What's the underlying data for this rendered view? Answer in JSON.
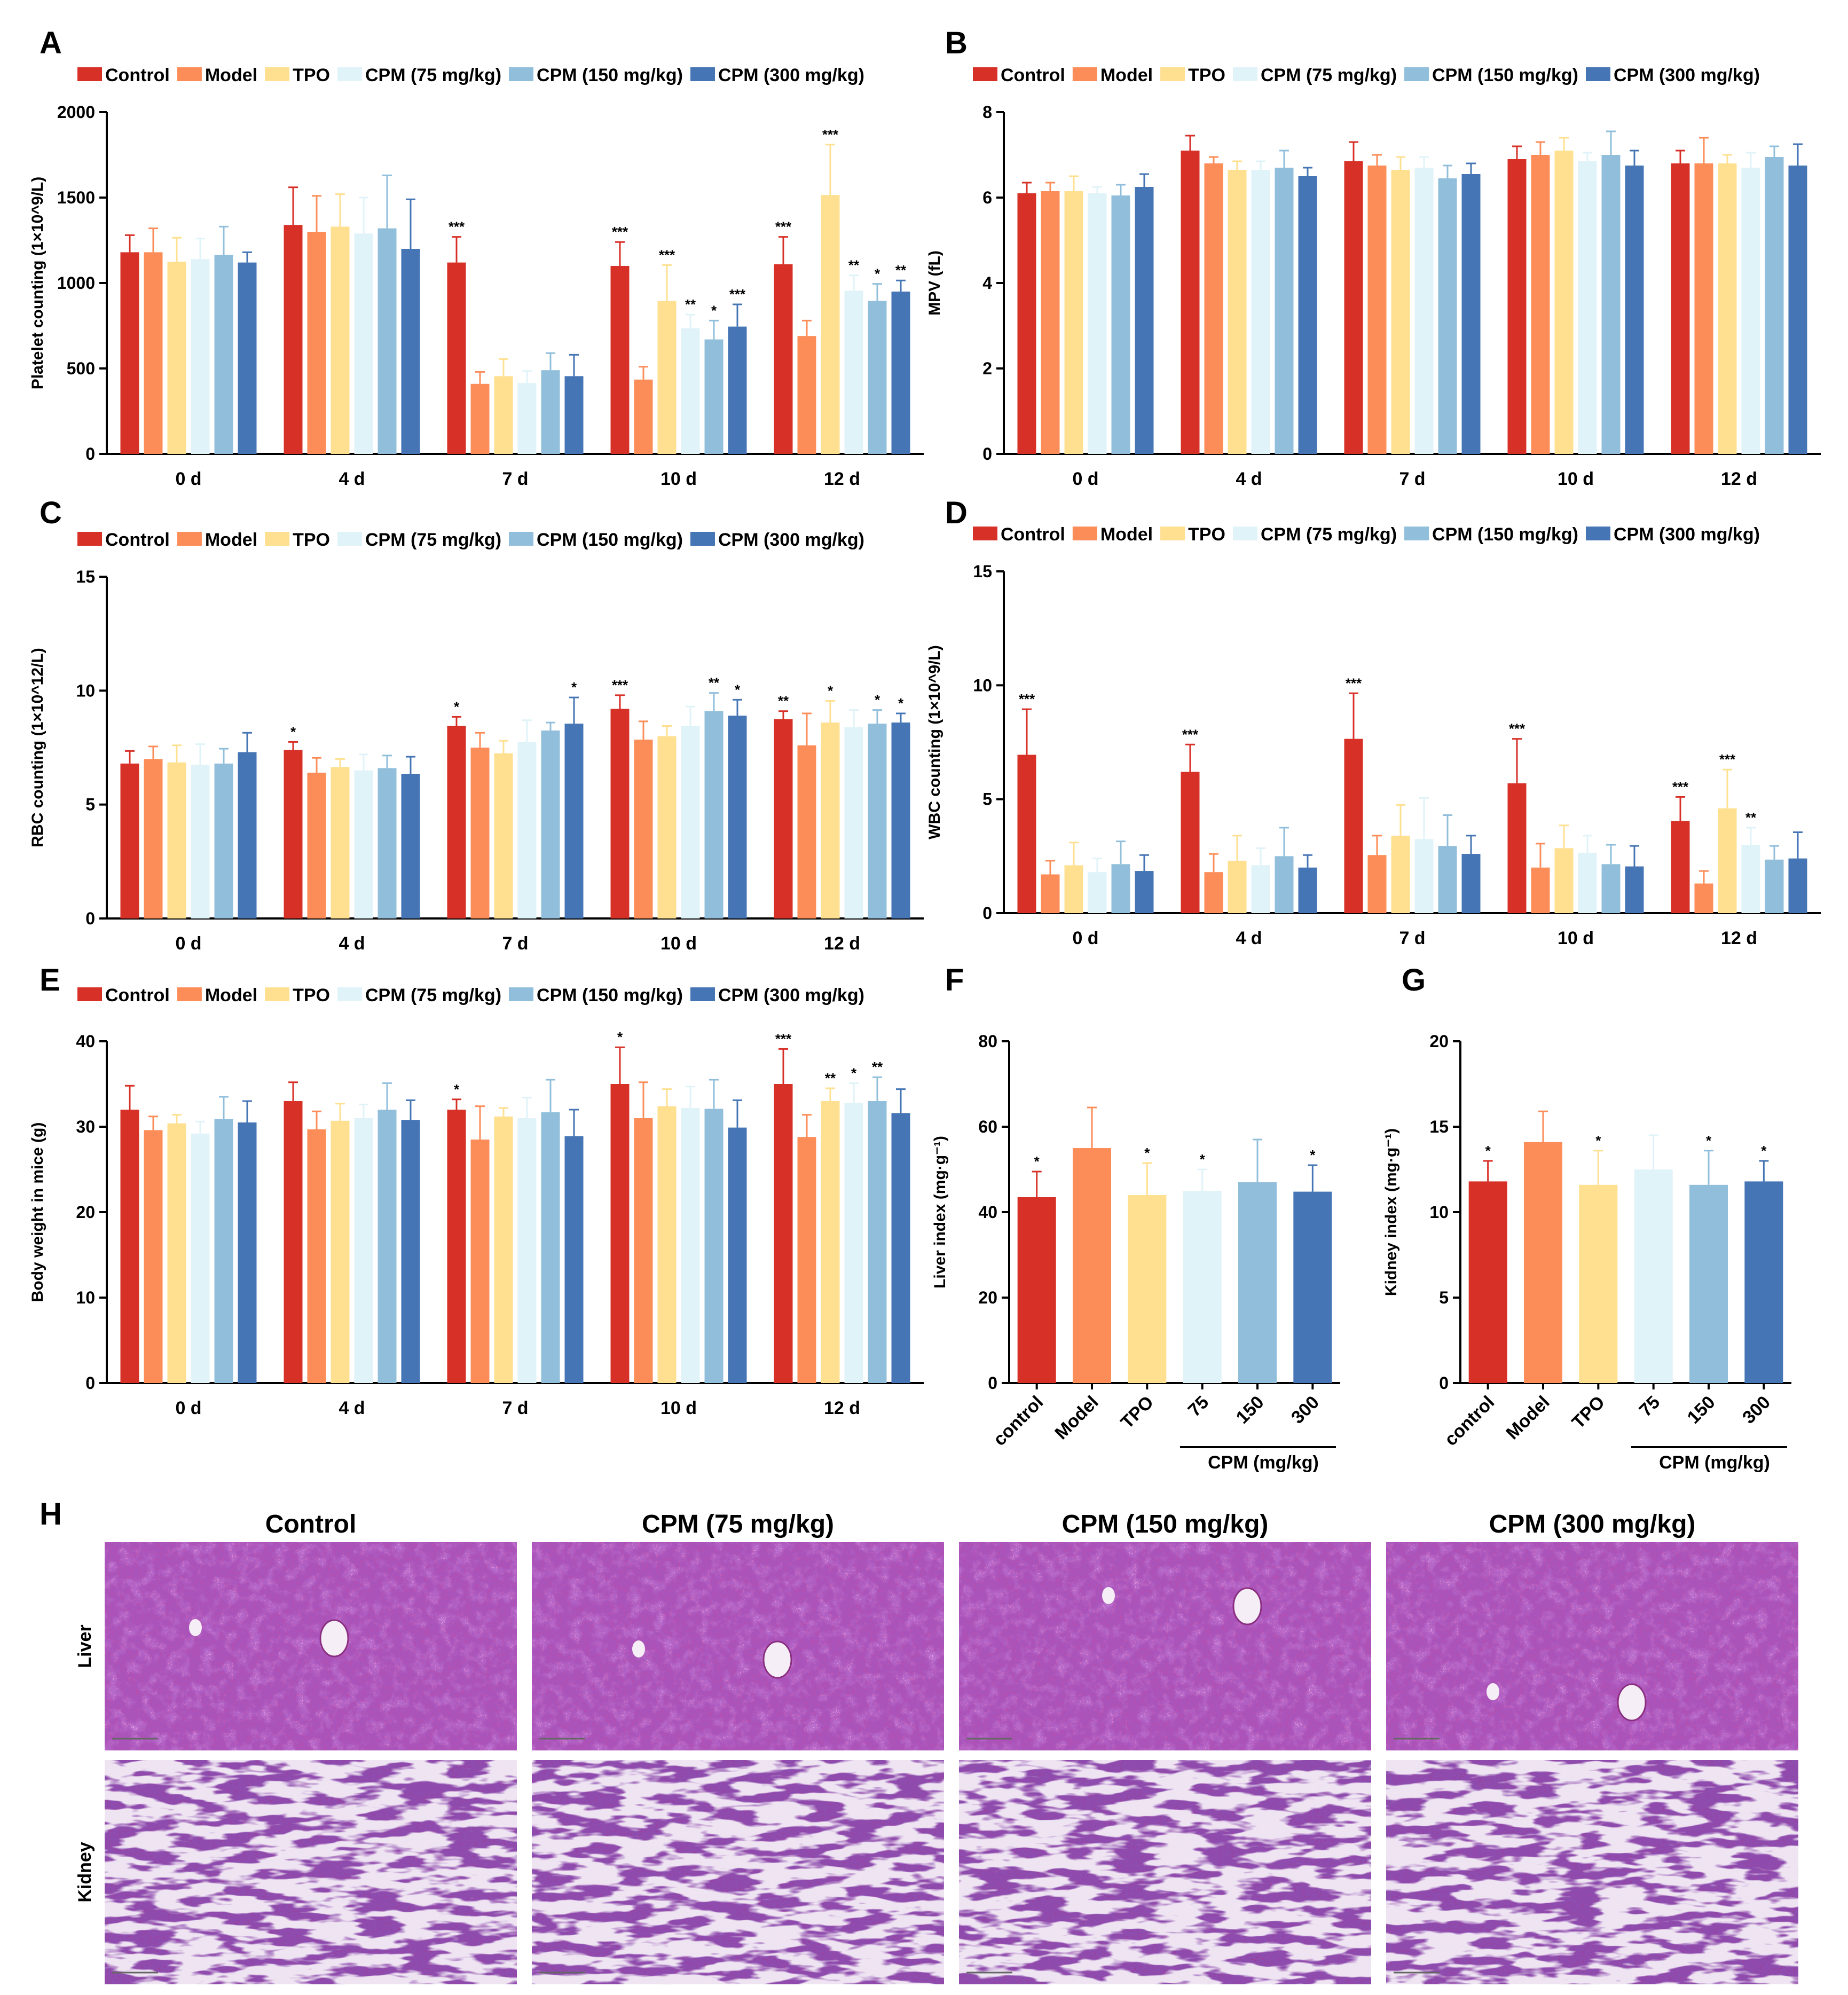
{
  "colors": {
    "Control": "#d73027",
    "Model": "#fc8d59",
    "TPO": "#fee090",
    "CPM (75 mg/kg)": "#e0f3f8",
    "CPM (150 mg/kg)": "#91bfdb",
    "CPM (300 mg/kg)": "#4575b4",
    "control": "#d73027",
    "75": "#e0f3f8",
    "150": "#91bfdb",
    "300": "#4575b4",
    "axis": "#000000",
    "liver_tissue": "#c04aa8",
    "kidney_tissue": "#a03d9a"
  },
  "chart_data": [
    {
      "panel": "A",
      "type": "bar",
      "ylabel": "Platelet counting (1×10^9/L)",
      "ylim": [
        0,
        2000
      ],
      "yticks": [
        "0",
        "500",
        "1000",
        "1500",
        "2000"
      ],
      "tick_values": [
        0,
        500,
        1000,
        1500,
        2000
      ],
      "categories": [
        "0 d",
        "4 d",
        "7 d",
        "10 d",
        "12 d"
      ],
      "series": [
        {
          "name": "Control",
          "values": [
            1180,
            1340,
            1120,
            1100,
            1110
          ],
          "errors": [
            100,
            220,
            150,
            140,
            160
          ],
          "sig": [
            "",
            "",
            "***",
            "***",
            "***"
          ]
        },
        {
          "name": "Model",
          "values": [
            1180,
            1300,
            410,
            435,
            690
          ],
          "errors": [
            140,
            210,
            70,
            75,
            90
          ],
          "sig": [
            "",
            "",
            "",
            "",
            ""
          ]
        },
        {
          "name": "TPO",
          "values": [
            1125,
            1330,
            455,
            895,
            1515
          ],
          "errors": [
            140,
            190,
            100,
            210,
            295
          ],
          "sig": [
            "",
            "",
            "",
            "***",
            "***"
          ]
        },
        {
          "name": "CPM (75 mg/kg)",
          "values": [
            1140,
            1290,
            415,
            735,
            955
          ],
          "errors": [
            120,
            210,
            70,
            80,
            90
          ],
          "sig": [
            "",
            "",
            "",
            "**",
            "**"
          ]
        },
        {
          "name": "CPM (150 mg/kg)",
          "values": [
            1165,
            1320,
            490,
            670,
            895
          ],
          "errors": [
            165,
            310,
            100,
            110,
            100
          ],
          "sig": [
            "",
            "",
            "",
            "*",
            "*"
          ]
        },
        {
          "name": "CPM (300 mg/kg)",
          "values": [
            1120,
            1200,
            455,
            745,
            950
          ],
          "errors": [
            60,
            290,
            125,
            130,
            65
          ],
          "sig": [
            "",
            "",
            "",
            "***",
            "**"
          ]
        }
      ]
    },
    {
      "panel": "B",
      "type": "bar",
      "ylabel": "MPV (fL)",
      "ylim": [
        0,
        8
      ],
      "yticks": [
        "0",
        "2",
        "4",
        "6",
        "8"
      ],
      "tick_values": [
        0,
        2,
        4,
        6,
        8
      ],
      "categories": [
        "0 d",
        "4 d",
        "7 d",
        "10 d",
        "12 d"
      ],
      "series": [
        {
          "name": "Control",
          "values": [
            6.1,
            7.1,
            6.85,
            6.9,
            6.8
          ],
          "errors": [
            0.25,
            0.35,
            0.45,
            0.3,
            0.3
          ],
          "sig": [
            "",
            "",
            "",
            "",
            ""
          ]
        },
        {
          "name": "Model",
          "values": [
            6.15,
            6.8,
            6.75,
            7.0,
            6.8
          ],
          "errors": [
            0.2,
            0.15,
            0.25,
            0.3,
            0.6
          ],
          "sig": [
            "",
            "",
            "",
            "",
            ""
          ]
        },
        {
          "name": "TPO",
          "values": [
            6.15,
            6.65,
            6.65,
            7.1,
            6.8
          ],
          "errors": [
            0.35,
            0.2,
            0.3,
            0.3,
            0.2
          ],
          "sig": [
            "",
            "",
            "",
            "",
            ""
          ]
        },
        {
          "name": "CPM (75 mg/kg)",
          "values": [
            6.1,
            6.65,
            6.7,
            6.85,
            6.7
          ],
          "errors": [
            0.15,
            0.2,
            0.25,
            0.2,
            0.35
          ],
          "sig": [
            "",
            "",
            "",
            "",
            ""
          ]
        },
        {
          "name": "CPM (150 mg/kg)",
          "values": [
            6.05,
            6.7,
            6.45,
            7.0,
            6.95
          ],
          "errors": [
            0.25,
            0.4,
            0.3,
            0.55,
            0.25
          ],
          "sig": [
            "",
            "",
            "",
            "",
            ""
          ]
        },
        {
          "name": "CPM (300 mg/kg)",
          "values": [
            6.25,
            6.5,
            6.55,
            6.75,
            6.75
          ],
          "errors": [
            0.3,
            0.2,
            0.25,
            0.35,
            0.5
          ],
          "sig": [
            "",
            "",
            "",
            "",
            ""
          ]
        }
      ]
    },
    {
      "panel": "C",
      "type": "bar",
      "ylabel": "RBC counting (1×10^12/L)",
      "ylim": [
        0,
        15
      ],
      "yticks": [
        "0",
        "5",
        "10",
        "15"
      ],
      "tick_values": [
        0,
        5,
        10,
        15
      ],
      "categories": [
        "0 d",
        "4 d",
        "7 d",
        "10 d",
        "12 d"
      ],
      "series": [
        {
          "name": "Control",
          "values": [
            6.8,
            7.4,
            8.45,
            9.2,
            8.75
          ],
          "errors": [
            0.55,
            0.35,
            0.4,
            0.6,
            0.35
          ],
          "sig": [
            "",
            "*",
            "*",
            "***",
            "**"
          ]
        },
        {
          "name": "Model",
          "values": [
            7.0,
            6.4,
            7.5,
            7.85,
            7.6
          ],
          "errors": [
            0.55,
            0.65,
            0.65,
            0.8,
            1.4
          ],
          "sig": [
            "",
            "",
            "",
            "",
            ""
          ]
        },
        {
          "name": "TPO",
          "values": [
            6.85,
            6.65,
            7.25,
            8.0,
            8.6
          ],
          "errors": [
            0.75,
            0.35,
            0.55,
            0.45,
            0.95
          ],
          "sig": [
            "",
            "",
            "",
            "",
            "*"
          ]
        },
        {
          "name": "CPM (75 mg/kg)",
          "values": [
            6.75,
            6.5,
            7.75,
            8.45,
            8.4
          ],
          "errors": [
            0.9,
            0.7,
            0.95,
            0.85,
            0.75
          ],
          "sig": [
            "",
            "",
            "",
            "",
            ""
          ]
        },
        {
          "name": "CPM (150 mg/kg)",
          "values": [
            6.8,
            6.6,
            8.25,
            9.1,
            8.55
          ],
          "errors": [
            0.65,
            0.55,
            0.35,
            0.8,
            0.6
          ],
          "sig": [
            "",
            "",
            "",
            "**",
            "*"
          ]
        },
        {
          "name": "CPM (300 mg/kg)",
          "values": [
            7.3,
            6.35,
            8.55,
            8.9,
            8.6
          ],
          "errors": [
            0.85,
            0.75,
            1.15,
            0.7,
            0.4
          ],
          "sig": [
            "",
            "",
            "*",
            "*",
            "*"
          ]
        }
      ]
    },
    {
      "panel": "D",
      "type": "bar",
      "ylabel": "WBC counting (1×10^9/L)",
      "ylim": [
        0,
        15
      ],
      "yticks": [
        "0",
        "5",
        "10",
        "15"
      ],
      "tick_values": [
        0,
        5,
        10,
        15
      ],
      "categories": [
        "0 d",
        "4 d",
        "7 d",
        "10 d",
        "12 d"
      ],
      "series": [
        {
          "name": "Control",
          "values": [
            6.95,
            6.2,
            7.65,
            5.7,
            4.05
          ],
          "errors": [
            2.0,
            1.2,
            2.0,
            1.95,
            1.05
          ],
          "sig": [
            "***",
            "***",
            "***",
            "***",
            "***"
          ]
        },
        {
          "name": "Model",
          "values": [
            1.7,
            1.8,
            2.55,
            2.0,
            1.3
          ],
          "errors": [
            0.6,
            0.8,
            0.85,
            1.05,
            0.55
          ],
          "sig": [
            "",
            "",
            "",
            "",
            ""
          ]
        },
        {
          "name": "TPO",
          "values": [
            2.1,
            2.3,
            3.4,
            2.85,
            4.6
          ],
          "errors": [
            1.0,
            1.1,
            1.35,
            1.0,
            1.7
          ],
          "sig": [
            "",
            "",
            "",
            "",
            "***"
          ]
        },
        {
          "name": "CPM (75 mg/kg)",
          "values": [
            1.8,
            2.1,
            3.25,
            2.65,
            3.0
          ],
          "errors": [
            0.6,
            0.75,
            1.8,
            0.75,
            0.75
          ],
          "sig": [
            "",
            "",
            "",
            "",
            "**"
          ]
        },
        {
          "name": "CPM (150 mg/kg)",
          "values": [
            2.15,
            2.5,
            2.95,
            2.15,
            2.35
          ],
          "errors": [
            1.0,
            1.25,
            1.35,
            0.85,
            0.6
          ],
          "sig": [
            "",
            "",
            "",
            "",
            ""
          ]
        },
        {
          "name": "CPM (300 mg/kg)",
          "values": [
            1.85,
            2.0,
            2.6,
            2.05,
            2.4
          ],
          "errors": [
            0.7,
            0.55,
            0.8,
            0.9,
            1.15
          ],
          "sig": [
            "",
            "",
            "",
            "",
            ""
          ]
        }
      ]
    },
    {
      "panel": "E",
      "type": "bar",
      "ylabel": "Body weight in mice (g)",
      "ylim": [
        0,
        40
      ],
      "yticks": [
        "0",
        "10",
        "20",
        "30",
        "40"
      ],
      "tick_values": [
        0,
        10,
        20,
        30,
        40
      ],
      "categories": [
        "0 d",
        "4 d",
        "7 d",
        "10 d",
        "12 d"
      ],
      "series": [
        {
          "name": "Control",
          "values": [
            32.0,
            33.0,
            32.0,
            35.0,
            35.0
          ],
          "errors": [
            2.8,
            2.2,
            1.2,
            4.3,
            4.1
          ],
          "sig": [
            "",
            "",
            "*",
            "*",
            "***"
          ]
        },
        {
          "name": "Model",
          "values": [
            29.6,
            29.7,
            28.5,
            31.0,
            28.8
          ],
          "errors": [
            1.6,
            2.1,
            3.9,
            4.2,
            2.6
          ],
          "sig": [
            "",
            "",
            "",
            "",
            ""
          ]
        },
        {
          "name": "TPO",
          "values": [
            30.4,
            30.7,
            31.2,
            32.4,
            33.0
          ],
          "errors": [
            1.0,
            2.0,
            1.0,
            2.0,
            1.5
          ],
          "sig": [
            "",
            "",
            "",
            "",
            "**"
          ]
        },
        {
          "name": "CPM (75 mg/kg)",
          "values": [
            29.2,
            31.0,
            31.0,
            32.2,
            32.8
          ],
          "errors": [
            1.4,
            1.6,
            2.4,
            2.5,
            2.3
          ],
          "sig": [
            "",
            "",
            "",
            "",
            "*"
          ]
        },
        {
          "name": "CPM (150 mg/kg)",
          "values": [
            30.9,
            32.0,
            31.7,
            32.1,
            33.0
          ],
          "errors": [
            2.6,
            3.1,
            3.8,
            3.4,
            2.8
          ],
          "sig": [
            "",
            "",
            "",
            "",
            "**"
          ]
        },
        {
          "name": "CPM (300 mg/kg)",
          "values": [
            30.5,
            30.8,
            28.9,
            29.9,
            31.6
          ],
          "errors": [
            2.5,
            2.3,
            3.1,
            3.2,
            2.8
          ],
          "sig": [
            "",
            "",
            "",
            "",
            ""
          ]
        }
      ]
    },
    {
      "panel": "F",
      "type": "bar",
      "ylabel": "Liver index (mg·g⁻¹)",
      "ylim": [
        0,
        80
      ],
      "yticks": [
        "0",
        "20",
        "40",
        "60",
        "80"
      ],
      "tick_values": [
        0,
        20,
        40,
        60,
        80
      ],
      "categories": [
        "control",
        "Model",
        "TPO",
        "75",
        "150",
        "300"
      ],
      "values": [
        43.5,
        55.0,
        44.0,
        45.0,
        47.0,
        44.8
      ],
      "errors": [
        6.0,
        9.5,
        7.5,
        5.0,
        10.0,
        6.2
      ],
      "sig": [
        "*",
        "",
        "*",
        "*",
        "",
        "*"
      ],
      "group_label": "CPM (mg/kg)"
    },
    {
      "panel": "G",
      "type": "bar",
      "ylabel": "Kidney index (mg·g⁻¹)",
      "ylim": [
        0,
        20
      ],
      "yticks": [
        "0",
        "5",
        "10",
        "15",
        "20"
      ],
      "tick_values": [
        0,
        5,
        10,
        15,
        20
      ],
      "categories": [
        "control",
        "Model",
        "TPO",
        "75",
        "150",
        "300"
      ],
      "values": [
        11.8,
        14.1,
        11.6,
        12.5,
        11.6,
        11.8
      ],
      "errors": [
        1.2,
        1.8,
        2.0,
        2.0,
        2.0,
        1.2
      ],
      "sig": [
        "*",
        "",
        "*",
        "",
        "*",
        "*"
      ],
      "group_label": "CPM (mg/kg)"
    }
  ],
  "histology": {
    "panel": "H",
    "columns": [
      "Control",
      "CPM (75 mg/kg)",
      "CPM (150 mg/kg)",
      "CPM (300 mg/kg)"
    ],
    "rows": [
      "Liver",
      "Kidney"
    ]
  }
}
